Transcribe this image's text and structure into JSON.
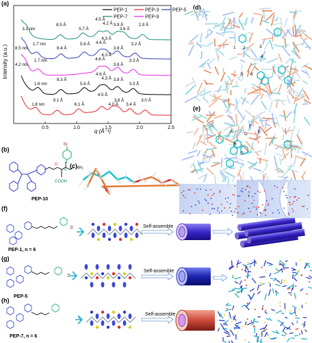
{
  "panels": {
    "a": "(a)",
    "b": "(b)",
    "c": "(c)",
    "d": "(d)",
    "e": "(e)",
    "f": "(f)",
    "g": "(g)",
    "h": "(h)"
  },
  "chart_data": {
    "type": "line",
    "xlabel": "q (Å⁻¹)",
    "ylabel": "Intensity (a.u.)",
    "xlim": [
      0,
      2.5
    ],
    "xticks": [
      "0.5",
      "1.0",
      "1.5",
      "2.0",
      "2.5"
    ],
    "legend": [
      "PEP-1",
      "PEP-3",
      "PEP-5",
      "PEP-7",
      "PEP-9"
    ],
    "legend_placement": "top-right",
    "colors": {
      "PEP-1": "#000000",
      "PEP-3": "#e8202a",
      "PEP-5": "#2c3fb5",
      "PEP-7": "#1b8a7c",
      "PEP-9": "#e224e8"
    },
    "series": [
      {
        "name": "PEP-7",
        "color": "#1b8a7c",
        "offset": 4,
        "peaks": [
          [
            0.2,
            "3.1 nm"
          ],
          [
            0.74,
            "8.5 Å"
          ],
          [
            1.1,
            "5.7 Å"
          ],
          [
            1.36,
            "4.5 Å"
          ],
          [
            1.48,
            "4.2 Å"
          ],
          [
            1.65,
            "3.9 Å"
          ],
          [
            1.75,
            "3.6 Å"
          ],
          [
            2.05,
            "2.9 Å"
          ]
        ]
      },
      {
        "name": "PEP-5",
        "color": "#2c3fb5",
        "offset": 3,
        "peaks": [
          [
            0.08,
            "8.5 nm"
          ],
          [
            0.37,
            "1.7 nm"
          ],
          [
            0.75,
            "8.4 Å"
          ],
          [
            1.12,
            "5.6 Å"
          ],
          [
            1.37,
            "4.6 Å"
          ],
          [
            1.46,
            "4.3 Å"
          ],
          [
            1.65,
            "3.8 Å"
          ],
          [
            1.93,
            "3.2 Å"
          ]
        ]
      },
      {
        "name": "PEP-9",
        "color": "#e224e8",
        "offset": 2,
        "peaks": [
          [
            0.06,
            "4.2 nm"
          ],
          [
            0.39,
            "1.7 nm"
          ],
          [
            1.36,
            "4.6 Å"
          ],
          [
            1.46,
            "4.3 Å"
          ],
          [
            1.65,
            "3.8 Å"
          ],
          [
            1.9,
            "3.3 Å"
          ]
        ]
      },
      {
        "name": "PEP-1",
        "color": "#000000",
        "offset": 1,
        "peaks": [
          [
            0.39,
            "1.6 nm"
          ],
          [
            0.75,
            "8.3 Å"
          ],
          [
            1.12,
            "5.6 Å"
          ],
          [
            1.37,
            "4.6 Å"
          ],
          [
            1.46,
            "4.3 Å"
          ],
          [
            1.65,
            "3.8 Å"
          ],
          [
            1.9,
            "3.3 Å"
          ]
        ]
      },
      {
        "name": "PEP-3",
        "color": "#e8202a",
        "offset": 0,
        "peaks": [
          [
            0.35,
            "1.8 nm"
          ],
          [
            0.69,
            "9.1 Å"
          ],
          [
            1.03,
            "6.1 Å"
          ],
          [
            1.4,
            "4.5 Å"
          ],
          [
            1.57,
            "4.0 Å"
          ],
          [
            1.66,
            "3.8 Å"
          ],
          [
            1.85,
            "3.4 Å"
          ],
          [
            2.09,
            "3.0 Å"
          ]
        ]
      }
    ]
  },
  "labels": {
    "pep10": "PEP-10",
    "pep1": "PEP-1, n = 6",
    "pep5": "PEP-5",
    "pep7": "PEP-7, n = 6",
    "self_assemble_f": "Self-assemble",
    "self_assemble_g": "Self-assemble",
    "self_assemble_h": "Self-assemble",
    "equals_f": "=",
    "equals_g": "=",
    "equals_h": "=",
    "chem_br": "Br",
    "chem_cooh": "COOH",
    "chem_nh2": "NH₂",
    "chem_o": "O",
    "chem_n": "N",
    "d_nums": [
      "1",
      "2",
      "3",
      "4",
      "5",
      "6"
    ],
    "e_letters": [
      "A",
      "B",
      "C",
      "D",
      "E",
      "F"
    ]
  }
}
